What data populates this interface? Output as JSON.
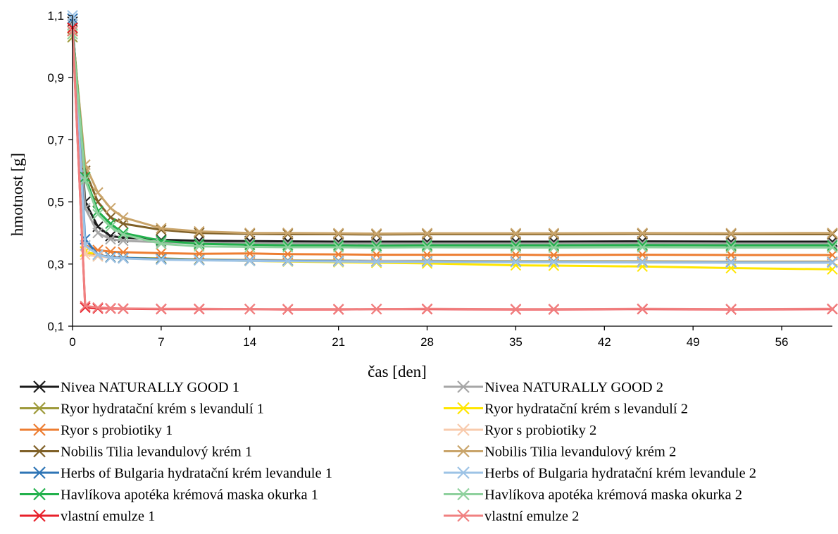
{
  "chart_data": {
    "type": "line",
    "title": "",
    "xlabel": "čas [den]",
    "ylabel": "hmotnost [g]",
    "xlim": [
      0,
      60
    ],
    "ylim": [
      0.1,
      1.1
    ],
    "x_ticks": [
      0,
      7,
      14,
      21,
      28,
      35,
      42,
      49,
      56
    ],
    "y_ticks": [
      0.1,
      0.3,
      0.5,
      0.7,
      0.9,
      1.1
    ],
    "y_tick_labels": [
      "0,1",
      "0,3",
      "0,5",
      "0,7",
      "0,9",
      "1,1"
    ],
    "grid": false,
    "legend_position": "bottom",
    "marker": "x",
    "x": [
      0,
      1,
      2,
      3,
      4,
      7,
      10,
      14,
      17,
      21,
      24,
      28,
      35,
      38,
      45,
      52,
      60
    ],
    "series": [
      {
        "name": "Nivea NATURALLY GOOD 1",
        "color": "#1a1a1a",
        "values": [
          1.08,
          0.5,
          0.42,
          0.39,
          0.385,
          0.378,
          0.375,
          0.374,
          0.373,
          0.372,
          0.372,
          0.372,
          0.372,
          0.372,
          0.373,
          0.372,
          0.372
        ]
      },
      {
        "name": "Nivea NATURALLY GOOD 2",
        "color": "#a6a6a6",
        "values": [
          1.07,
          0.48,
          0.4,
          0.38,
          0.375,
          0.37,
          0.368,
          0.367,
          0.366,
          0.366,
          0.366,
          0.366,
          0.366,
          0.366,
          0.367,
          0.366,
          0.366
        ]
      },
      {
        "name": "Ryor hydratační krém s levandulí 1",
        "color": "#9e9a3a",
        "values": [
          1.03,
          0.34,
          0.325,
          0.322,
          0.32,
          0.318,
          0.315,
          0.313,
          0.312,
          0.311,
          0.31,
          0.31,
          0.309,
          0.309,
          0.309,
          0.308,
          0.308
        ]
      },
      {
        "name": "Ryor hydratační krém s levandulí 2",
        "color": "#ffe600",
        "values": [
          1.04,
          0.34,
          0.33,
          0.322,
          0.32,
          0.316,
          0.313,
          0.31,
          0.308,
          0.306,
          0.304,
          0.302,
          0.296,
          0.295,
          0.292,
          0.287,
          0.283
        ]
      },
      {
        "name": "Ryor s probiotiky 1",
        "color": "#ed7d31",
        "values": [
          1.05,
          0.36,
          0.345,
          0.34,
          0.338,
          0.335,
          0.333,
          0.334,
          0.332,
          0.331,
          0.33,
          0.33,
          0.33,
          0.329,
          0.33,
          0.329,
          0.329
        ]
      },
      {
        "name": "Ryor s probiotiky 2",
        "color": "#f8cbad",
        "values": [
          1.04,
          0.33,
          0.325,
          0.32,
          0.318,
          0.315,
          0.313,
          0.312,
          0.311,
          0.31,
          0.31,
          0.309,
          0.308,
          0.308,
          0.308,
          0.307,
          0.307
        ]
      },
      {
        "name": "Nobilis Tilia levandulový krém 1",
        "color": "#7f6027",
        "values": [
          1.06,
          0.6,
          0.5,
          0.45,
          0.43,
          0.41,
          0.4,
          0.397,
          0.396,
          0.396,
          0.395,
          0.396,
          0.396,
          0.396,
          0.397,
          0.396,
          0.396
        ]
      },
      {
        "name": "Nobilis Tilia levandulový krém 2",
        "color": "#c9a46a",
        "values": [
          1.05,
          0.62,
          0.53,
          0.48,
          0.45,
          0.415,
          0.405,
          0.4,
          0.4,
          0.399,
          0.398,
          0.399,
          0.399,
          0.399,
          0.4,
          0.399,
          0.4
        ]
      },
      {
        "name": "Herbs of Bulgaria hydratační krém levandule 1",
        "color": "#2e75b6",
        "values": [
          1.09,
          0.38,
          0.33,
          0.322,
          0.32,
          0.316,
          0.313,
          0.311,
          0.31,
          0.309,
          0.308,
          0.308,
          0.307,
          0.307,
          0.306,
          0.305,
          0.305
        ]
      },
      {
        "name": "Herbs of Bulgaria hydratační krém levandule 2",
        "color": "#9dc3e6",
        "values": [
          1.1,
          0.36,
          0.33,
          0.32,
          0.318,
          0.314,
          0.312,
          0.31,
          0.309,
          0.308,
          0.307,
          0.307,
          0.306,
          0.306,
          0.305,
          0.304,
          0.304
        ]
      },
      {
        "name": "Havlíkova apotéka krémová maska okurka 1",
        "color": "#22b14c",
        "values": [
          1.05,
          0.58,
          0.47,
          0.43,
          0.4,
          0.375,
          0.365,
          0.362,
          0.36,
          0.36,
          0.359,
          0.36,
          0.36,
          0.36,
          0.361,
          0.36,
          0.36
        ]
      },
      {
        "name": "Havlíkova apotéka krémová maska okurka 2",
        "color": "#8fd19e",
        "values": [
          1.04,
          0.57,
          0.46,
          0.42,
          0.395,
          0.365,
          0.357,
          0.355,
          0.354,
          0.354,
          0.353,
          0.354,
          0.353,
          0.353,
          0.354,
          0.353,
          0.353
        ]
      },
      {
        "name": "vlastní emulze 1",
        "color": "#e8202a",
        "values": [
          1.06,
          0.16,
          0.157,
          0.157,
          0.156,
          0.155,
          0.155,
          0.155,
          0.154,
          0.154,
          0.155,
          0.155,
          0.154,
          0.154,
          0.155,
          0.154,
          0.155
        ]
      },
      {
        "name": "vlastní emulze 2",
        "color": "#f08080",
        "values": [
          1.05,
          0.165,
          0.16,
          0.158,
          0.157,
          0.156,
          0.156,
          0.155,
          0.155,
          0.155,
          0.155,
          0.156,
          0.155,
          0.155,
          0.156,
          0.155,
          0.156
        ]
      }
    ]
  }
}
